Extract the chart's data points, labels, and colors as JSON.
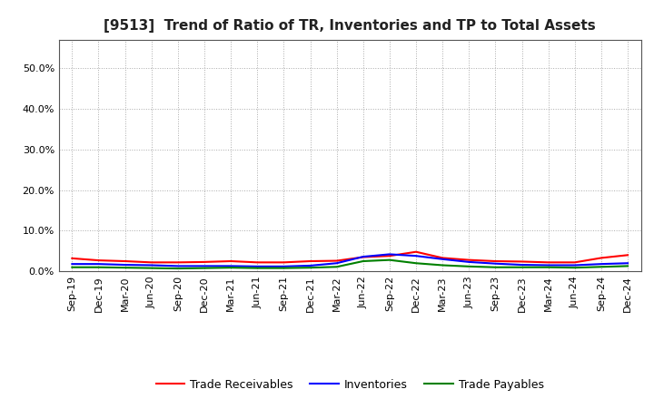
{
  "title": "[9513]  Trend of Ratio of TR, Inventories and TP to Total Assets",
  "x_labels": [
    "Sep-19",
    "Dec-19",
    "Mar-20",
    "Jun-20",
    "Sep-20",
    "Dec-20",
    "Mar-21",
    "Jun-21",
    "Sep-21",
    "Dec-21",
    "Mar-22",
    "Jun-22",
    "Sep-22",
    "Dec-22",
    "Mar-23",
    "Jun-23",
    "Sep-23",
    "Dec-23",
    "Mar-24",
    "Jun-24",
    "Sep-24",
    "Dec-24"
  ],
  "trade_receivables": [
    0.032,
    0.027,
    0.025,
    0.022,
    0.022,
    0.023,
    0.025,
    0.022,
    0.022,
    0.025,
    0.026,
    0.035,
    0.038,
    0.048,
    0.033,
    0.028,
    0.025,
    0.024,
    0.022,
    0.022,
    0.033,
    0.04
  ],
  "inventories": [
    0.018,
    0.018,
    0.016,
    0.015,
    0.013,
    0.013,
    0.013,
    0.012,
    0.012,
    0.014,
    0.02,
    0.036,
    0.042,
    0.038,
    0.03,
    0.023,
    0.019,
    0.016,
    0.015,
    0.015,
    0.018,
    0.02
  ],
  "trade_payables": [
    0.01,
    0.01,
    0.009,
    0.008,
    0.007,
    0.008,
    0.009,
    0.008,
    0.008,
    0.009,
    0.011,
    0.025,
    0.028,
    0.02,
    0.015,
    0.012,
    0.01,
    0.01,
    0.01,
    0.009,
    0.011,
    0.013
  ],
  "tr_color": "#ff0000",
  "inv_color": "#0000ff",
  "tp_color": "#008000",
  "ylim": [
    0,
    0.57
  ],
  "yticks": [
    0.0,
    0.1,
    0.2,
    0.3,
    0.4,
    0.5
  ],
  "background_color": "#ffffff",
  "plot_bg_color": "#ffffff",
  "grid_color": "#aaaaaa",
  "legend_labels": [
    "Trade Receivables",
    "Inventories",
    "Trade Payables"
  ],
  "title_fontsize": 11,
  "tick_fontsize": 8,
  "line_width": 1.5
}
